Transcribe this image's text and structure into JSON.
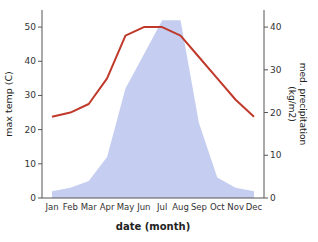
{
  "chart_data": {
    "type": "area",
    "x_label": "date (month)",
    "y_label": "max temp (C)",
    "y2_label": "med. precipitation\n(kg/m2)",
    "categories": [
      "Jan",
      "Feb",
      "Mar",
      "Apr",
      "May",
      "Jun",
      "Jul",
      "Aug",
      "Sep",
      "Oct",
      "Nov",
      "Dec"
    ],
    "series": [
      {
        "type": "area",
        "color": "#c5cef0",
        "values": [
          2,
          3,
          5,
          12,
          32,
          42,
          52,
          52,
          22,
          6,
          3,
          2
        ]
      },
      {
        "type": "line",
        "color": "#c0392b",
        "axis": "y2",
        "values": [
          19,
          20,
          22,
          28,
          38,
          40,
          40,
          38,
          33,
          28,
          23,
          19
        ]
      }
    ],
    "ylim": [
      0,
      55
    ],
    "yticks": [
      0,
      10,
      20,
      30,
      40,
      50
    ],
    "y2lim": [
      0,
      44
    ],
    "y2ticks": [
      0,
      10,
      20,
      30,
      40
    ],
    "grid": false
  }
}
